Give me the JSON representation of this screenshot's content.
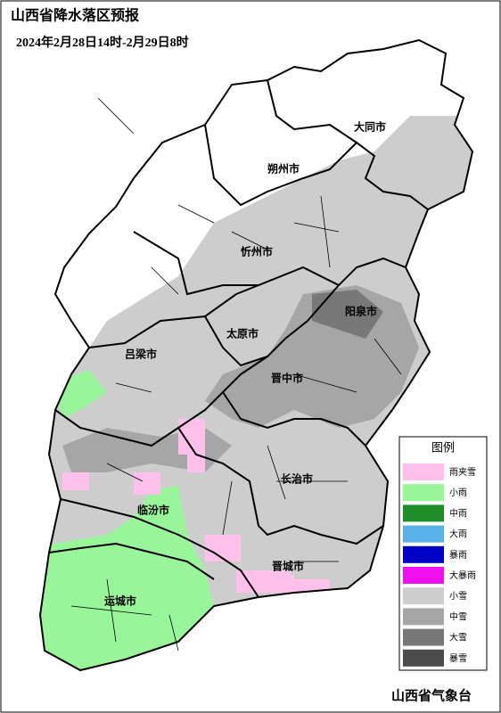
{
  "header": {
    "title": "山西省降水落区预报",
    "subtitle": "2024年2月28日14时-2月29日8时"
  },
  "cities": [
    "大同市",
    "朔州市",
    "忻州市",
    "阳泉市",
    "太原市",
    "吕梁市",
    "晋中市",
    "长治市",
    "临汾市",
    "晋城市",
    "运城市"
  ],
  "legend": {
    "title": "图例",
    "items": [
      {
        "label": "雨夹雪",
        "color": "#ffc0ec"
      },
      {
        "label": "小雨",
        "color": "#99f599"
      },
      {
        "label": "中雨",
        "color": "#1f8c2a"
      },
      {
        "label": "大雨",
        "color": "#5ab0e8"
      },
      {
        "label": "暴雨",
        "color": "#0000c8"
      },
      {
        "label": "大暴雨",
        "color": "#ee10ee"
      },
      {
        "label": "小雪",
        "color": "#cdcdcd"
      },
      {
        "label": "中雪",
        "color": "#a6a6a6"
      },
      {
        "label": "大雪",
        "color": "#787878"
      },
      {
        "label": "暴雪",
        "color": "#4b4b4b"
      }
    ]
  },
  "footer": "山西省气象台"
}
